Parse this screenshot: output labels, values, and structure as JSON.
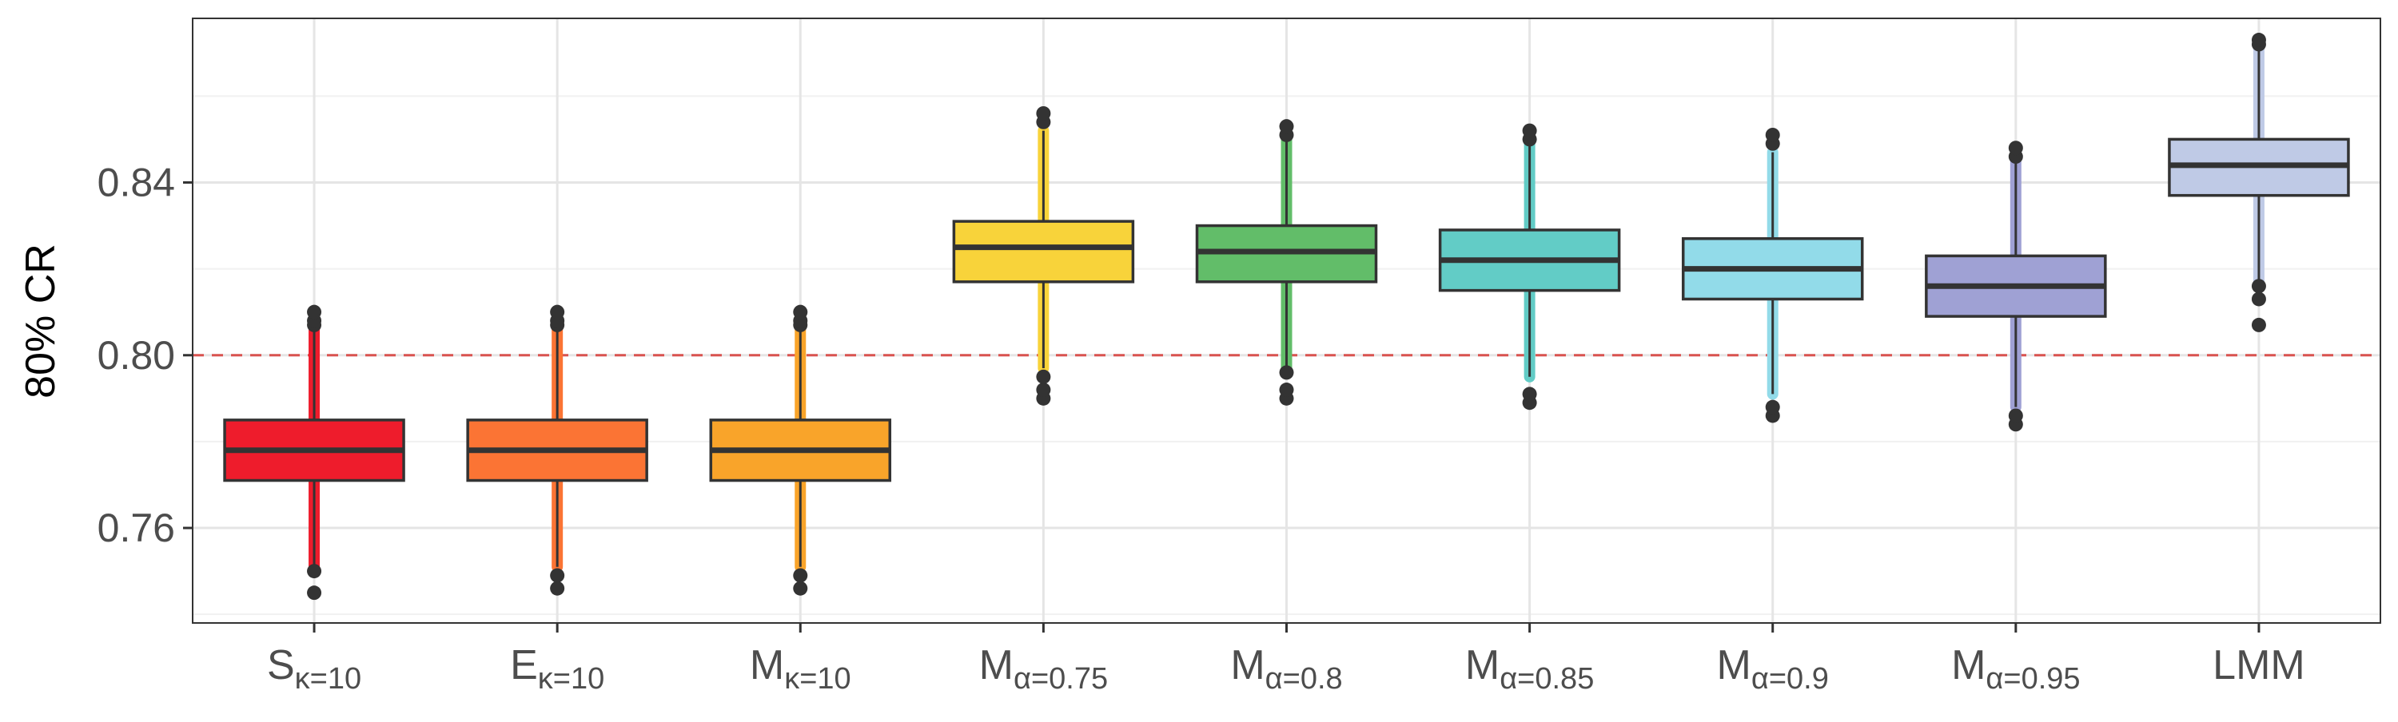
{
  "chart_data": {
    "type": "box",
    "ylabel": "80% CR",
    "ylim": [
      0.738,
      0.878
    ],
    "yticks": [
      0.76,
      0.8,
      0.84
    ],
    "reference_line": {
      "value": 0.8,
      "color": "#d9534f",
      "style": "dashed"
    },
    "grid": true,
    "legend": "none",
    "categories": [
      {
        "base": "S",
        "sub": "κ=10",
        "color": "#ee1c2c",
        "q1": 0.771,
        "median": 0.778,
        "q3": 0.785,
        "whisker_low": 0.751,
        "whisker_high": 0.806,
        "outliers": [
          0.745,
          0.75,
          0.807,
          0.808,
          0.81
        ]
      },
      {
        "base": "E",
        "sub": "κ=10",
        "color": "#fb7434",
        "q1": 0.771,
        "median": 0.778,
        "q3": 0.785,
        "whisker_low": 0.751,
        "whisker_high": 0.806,
        "outliers": [
          0.746,
          0.749,
          0.807,
          0.808,
          0.81
        ]
      },
      {
        "base": "M",
        "sub": "κ=10",
        "color": "#f9a42a",
        "q1": 0.771,
        "median": 0.778,
        "q3": 0.785,
        "whisker_low": 0.751,
        "whisker_high": 0.806,
        "outliers": [
          0.746,
          0.749,
          0.807,
          0.808,
          0.81
        ]
      },
      {
        "base": "M",
        "sub": "α=0.75",
        "color": "#f8d33a",
        "q1": 0.817,
        "median": 0.825,
        "q3": 0.831,
        "whisker_low": 0.797,
        "whisker_high": 0.852,
        "outliers": [
          0.79,
          0.792,
          0.795,
          0.854,
          0.856
        ]
      },
      {
        "base": "M",
        "sub": "α=0.8",
        "color": "#62bd69",
        "q1": 0.817,
        "median": 0.824,
        "q3": 0.83,
        "whisker_low": 0.797,
        "whisker_high": 0.85,
        "outliers": [
          0.79,
          0.792,
          0.796,
          0.851,
          0.853
        ]
      },
      {
        "base": "M",
        "sub": "α=0.85",
        "color": "#62ccc6",
        "q1": 0.815,
        "median": 0.822,
        "q3": 0.829,
        "whisker_low": 0.795,
        "whisker_high": 0.849,
        "outliers": [
          0.789,
          0.791,
          0.85,
          0.852
        ]
      },
      {
        "base": "M",
        "sub": "α=0.9",
        "color": "#92dbe9",
        "q1": 0.813,
        "median": 0.82,
        "q3": 0.827,
        "whisker_low": 0.791,
        "whisker_high": 0.847,
        "outliers": [
          0.786,
          0.788,
          0.849,
          0.851
        ]
      },
      {
        "base": "M",
        "sub": "α=0.95",
        "color": "#9fa1d4",
        "q1": 0.809,
        "median": 0.816,
        "q3": 0.823,
        "whisker_low": 0.788,
        "whisker_high": 0.845,
        "outliers": [
          0.784,
          0.786,
          0.846,
          0.848
        ]
      },
      {
        "base": "LMM",
        "sub": "",
        "color": "#bfcae6",
        "q1": 0.837,
        "median": 0.844,
        "q3": 0.85,
        "whisker_low": 0.816,
        "whisker_high": 0.871,
        "outliers": [
          0.807,
          0.813,
          0.816,
          0.872,
          0.873
        ]
      }
    ]
  }
}
